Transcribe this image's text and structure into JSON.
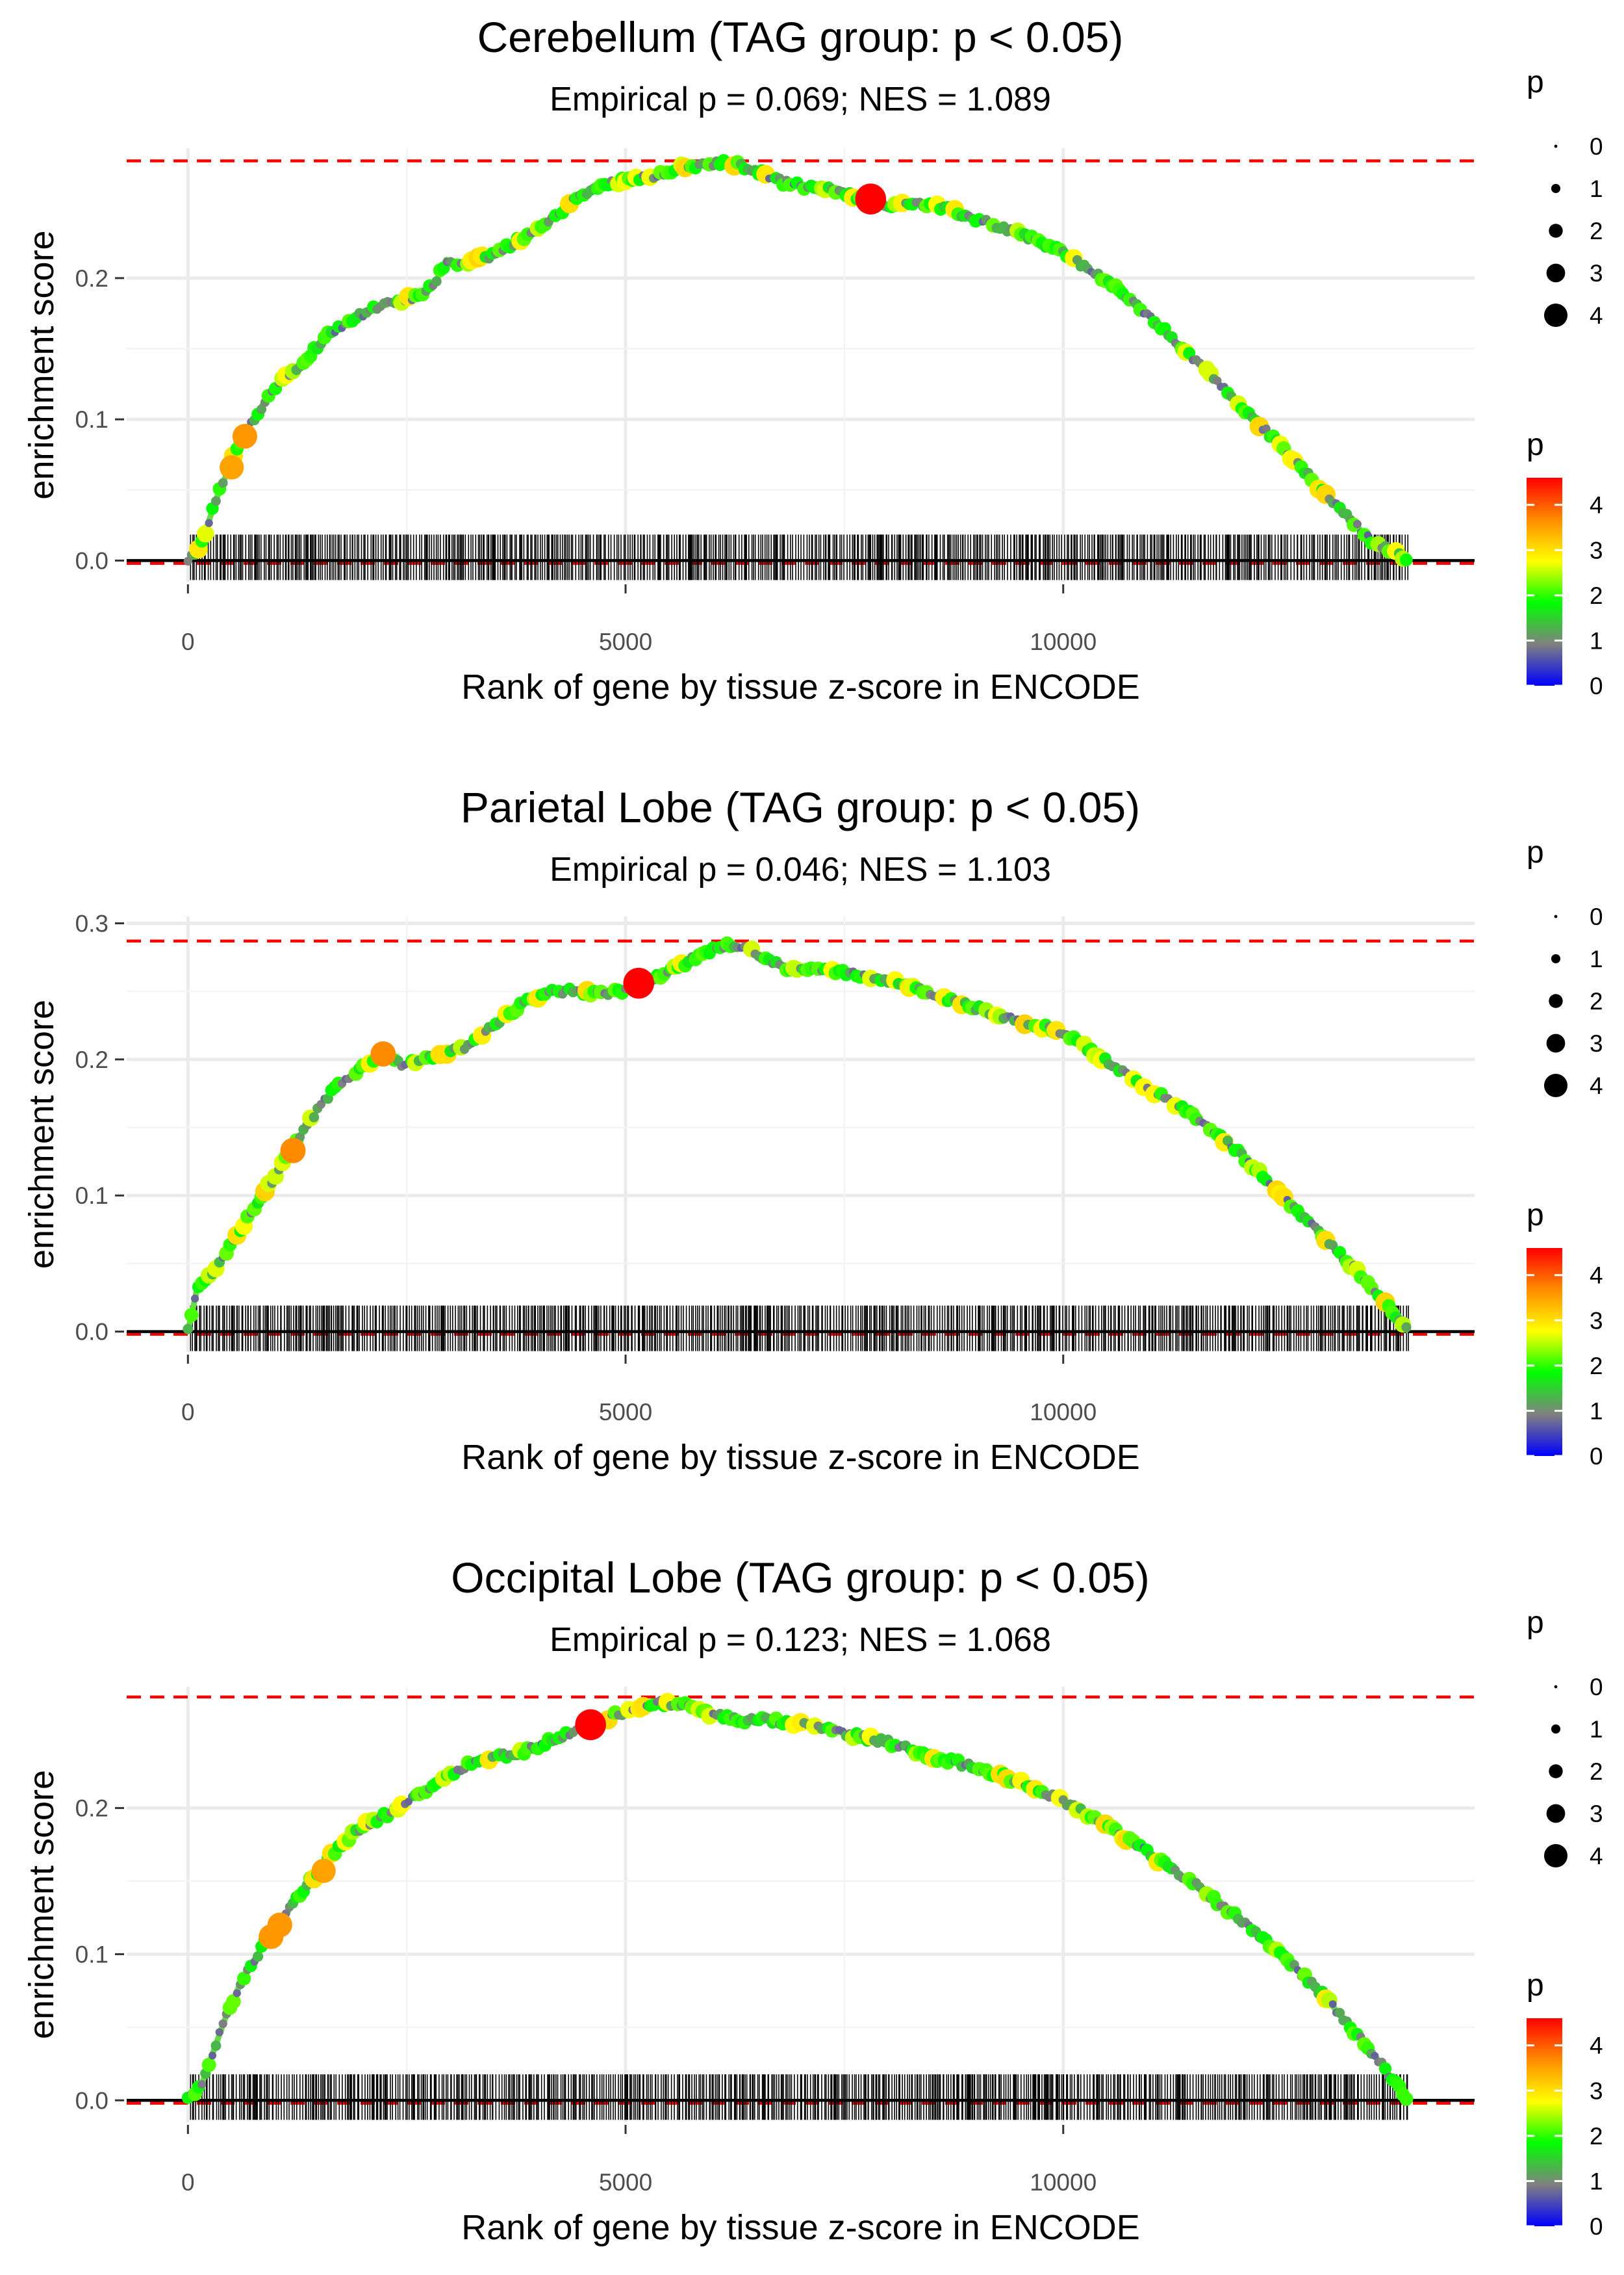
{
  "figure": {
    "x_axis_label": "Rank of gene by tissue z-score in ENCODE",
    "y_axis_label": "enrichment score"
  },
  "legend": {
    "size_title": "p",
    "size_values": [
      "0",
      "1",
      "2",
      "3",
      "4"
    ],
    "color_title": "p",
    "color_values": [
      "4",
      "3",
      "2",
      "1",
      "0"
    ],
    "color_stops": [
      "#ff0000",
      "#ff8c00",
      "#ffff00",
      "#00ff00",
      "#808080",
      "#0000ff"
    ]
  },
  "colors": {
    "grid": "#ebebeb",
    "max_es_line": "#ff0000",
    "zero_line": "#000000",
    "gene_ticks": "#000000"
  },
  "chart_data": [
    {
      "type": "line",
      "title": "Cerebellum (TAG group: p < 0.05)",
      "subtitle": "Empirical p = 0.069; NES = 1.089",
      "xlabel": "Rank of gene by tissue z-score in ENCODE",
      "ylabel": "enrichment score",
      "xlim": [
        -700,
        14700
      ],
      "ylim": [
        -0.015,
        0.292
      ],
      "x_ticks": [
        0,
        5000,
        10000
      ],
      "x_tick_labels": [
        "0",
        "5000",
        "10000"
      ],
      "y_ticks": [
        0.0,
        0.1,
        0.2
      ],
      "y_tick_labels": [
        "0.0",
        "0.1",
        "0.2"
      ],
      "max_es": 0.283,
      "min_es": -0.002,
      "gene_count": 13950,
      "curve": {
        "x": [
          0,
          150,
          300,
          500,
          700,
          900,
          1100,
          1300,
          1600,
          1900,
          2200,
          2500,
          2700,
          2850,
          2950,
          3100,
          3300,
          3500,
          3800,
          4100,
          4400,
          4700,
          5000,
          5300,
          5600,
          5900,
          6200,
          6500,
          6800,
          7100,
          7400,
          7700,
          8000,
          8300,
          8600,
          9000,
          9500,
          10000,
          10500,
          11000,
          11500,
          12000,
          12500,
          13000,
          13500,
          13950
        ],
        "y": [
          0.0,
          0.01,
          0.04,
          0.07,
          0.095,
          0.115,
          0.13,
          0.14,
          0.16,
          0.172,
          0.18,
          0.185,
          0.188,
          0.2,
          0.213,
          0.21,
          0.214,
          0.216,
          0.228,
          0.238,
          0.255,
          0.265,
          0.27,
          0.272,
          0.278,
          0.28,
          0.282,
          0.276,
          0.268,
          0.264,
          0.262,
          0.256,
          0.252,
          0.254,
          0.25,
          0.242,
          0.232,
          0.218,
          0.198,
          0.172,
          0.142,
          0.112,
          0.08,
          0.047,
          0.015,
          0.0
        ]
      },
      "highlight_points": [
        {
          "x": 500,
          "y": 0.066,
          "p": 3.4
        },
        {
          "x": 650,
          "y": 0.088,
          "p": 3.5
        },
        {
          "x": 7800,
          "y": 0.256,
          "p": 4.6
        }
      ]
    },
    {
      "type": "line",
      "title": "Parietal Lobe (TAG group: p < 0.05)",
      "subtitle": "Empirical p = 0.046; NES = 1.103",
      "xlabel": "Rank of gene by tissue z-score in ENCODE",
      "ylabel": "enrichment score",
      "xlim": [
        -700,
        14700
      ],
      "ylim": [
        -0.015,
        0.305
      ],
      "x_ticks": [
        0,
        5000,
        10000
      ],
      "x_tick_labels": [
        "0",
        "5000",
        "10000"
      ],
      "y_ticks": [
        0.0,
        0.1,
        0.2,
        0.3
      ],
      "y_tick_labels": [
        "0.0",
        "0.1",
        "0.2",
        "0.3"
      ],
      "max_es": 0.287,
      "min_es": -0.002,
      "gene_count": 13950,
      "curve": {
        "x": [
          0,
          100,
          300,
          500,
          700,
          900,
          1100,
          1300,
          1500,
          1700,
          1900,
          2100,
          2250,
          2450,
          2700,
          2950,
          3200,
          3500,
          3800,
          4100,
          4400,
          4700,
          5000,
          5300,
          5600,
          5900,
          6200,
          6500,
          6800,
          7100,
          7400,
          7700,
          8000,
          8500,
          9000,
          9500,
          10000,
          10500,
          11000,
          11500,
          12000,
          12500,
          13000,
          13500,
          13950
        ],
        "y": [
          0.0,
          0.03,
          0.045,
          0.065,
          0.085,
          0.105,
          0.125,
          0.145,
          0.165,
          0.18,
          0.19,
          0.198,
          0.205,
          0.195,
          0.2,
          0.205,
          0.21,
          0.225,
          0.24,
          0.25,
          0.25,
          0.248,
          0.25,
          0.258,
          0.268,
          0.278,
          0.285,
          0.278,
          0.268,
          0.265,
          0.265,
          0.262,
          0.258,
          0.248,
          0.238,
          0.228,
          0.22,
          0.198,
          0.178,
          0.158,
          0.132,
          0.1,
          0.068,
          0.035,
          0.0
        ]
      },
      "highlight_points": [
        {
          "x": 1200,
          "y": 0.133,
          "p": 3.6
        },
        {
          "x": 2230,
          "y": 0.204,
          "p": 3.6
        },
        {
          "x": 5150,
          "y": 0.256,
          "p": 4.6
        }
      ]
    },
    {
      "type": "line",
      "title": "Occipital Lobe (TAG group: p < 0.05)",
      "subtitle": "Empirical p = 0.123; NES = 1.068",
      "xlabel": "Rank of gene by tissue z-score in ENCODE",
      "ylabel": "enrichment score",
      "xlim": [
        -700,
        14700
      ],
      "ylim": [
        -0.015,
        0.283
      ],
      "x_ticks": [
        0,
        5000,
        10000
      ],
      "x_tick_labels": [
        "0",
        "5000",
        "10000"
      ],
      "y_ticks": [
        0.0,
        0.1,
        0.2
      ],
      "y_tick_labels": [
        "0.0",
        "0.1",
        "0.2"
      ],
      "max_es": 0.276,
      "min_es": -0.002,
      "gene_count": 13950,
      "curve": {
        "x": [
          0,
          150,
          300,
          450,
          600,
          750,
          900,
          1050,
          1200,
          1400,
          1600,
          1800,
          2000,
          2300,
          2600,
          2900,
          3200,
          3500,
          3800,
          4100,
          4400,
          4600,
          4800,
          5100,
          5400,
          5700,
          6000,
          6300,
          6600,
          6900,
          7200,
          7600,
          8000,
          8500,
          9000,
          9500,
          10000,
          10500,
          11000,
          11500,
          12000,
          12500,
          13000,
          13500,
          13950
        ],
        "y": [
          0.0,
          0.01,
          0.035,
          0.06,
          0.08,
          0.095,
          0.11,
          0.12,
          0.135,
          0.15,
          0.165,
          0.178,
          0.188,
          0.196,
          0.208,
          0.22,
          0.23,
          0.235,
          0.238,
          0.245,
          0.252,
          0.256,
          0.262,
          0.268,
          0.272,
          0.27,
          0.264,
          0.26,
          0.26,
          0.258,
          0.255,
          0.25,
          0.245,
          0.235,
          0.228,
          0.218,
          0.205,
          0.188,
          0.168,
          0.148,
          0.125,
          0.1,
          0.07,
          0.035,
          0.0
        ]
      },
      "highlight_points": [
        {
          "x": 950,
          "y": 0.112,
          "p": 3.5
        },
        {
          "x": 1050,
          "y": 0.12,
          "p": 3.5
        },
        {
          "x": 1550,
          "y": 0.157,
          "p": 3.4
        },
        {
          "x": 4600,
          "y": 0.257,
          "p": 4.6
        }
      ]
    }
  ]
}
